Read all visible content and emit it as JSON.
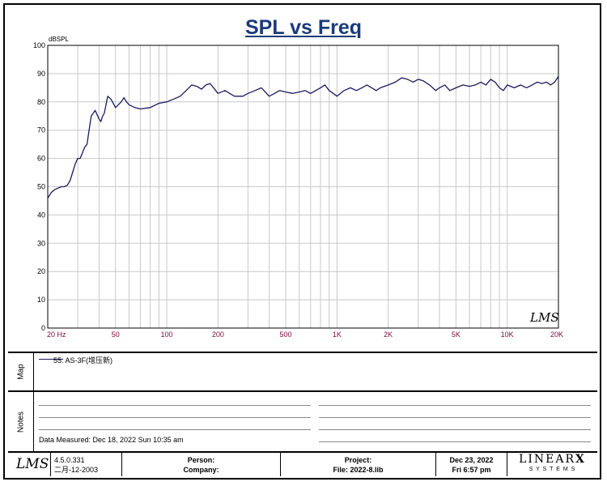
{
  "chart_data": {
    "type": "line",
    "title": "SPL vs Freq",
    "ylabel": "dBSPL",
    "xlabel": "",
    "x_scale": "log",
    "xlim": [
      20,
      20000
    ],
    "ylim": [
      0,
      100
    ],
    "y_ticks": [
      0,
      10,
      20,
      30,
      40,
      50,
      60,
      70,
      80,
      90,
      100
    ],
    "x_ticks": [
      {
        "value": 20,
        "label": "20 Hz"
      },
      {
        "value": 50,
        "label": "50"
      },
      {
        "value": 100,
        "label": "100"
      },
      {
        "value": 200,
        "label": "200"
      },
      {
        "value": 500,
        "label": "500"
      },
      {
        "value": 1000,
        "label": "1K"
      },
      {
        "value": 2000,
        "label": "2K"
      },
      {
        "value": 5000,
        "label": "5K"
      },
      {
        "value": 10000,
        "label": "10K"
      },
      {
        "value": 20000,
        "label": "20K"
      }
    ],
    "grid": true,
    "series": [
      {
        "name": "55: AS-3F(增压新)",
        "color": "#1a1a5e",
        "x": [
          20,
          21,
          22,
          23,
          24,
          25,
          26,
          27,
          28,
          29,
          30,
          31,
          32,
          33,
          34,
          35,
          36,
          37,
          38,
          40,
          41,
          42,
          43,
          45,
          47,
          48,
          50,
          52,
          54,
          56,
          58,
          60,
          65,
          70,
          80,
          90,
          100,
          110,
          120,
          130,
          140,
          150,
          160,
          170,
          180,
          200,
          220,
          250,
          280,
          300,
          330,
          360,
          400,
          430,
          460,
          500,
          550,
          600,
          650,
          700,
          800,
          850,
          900,
          950,
          1000,
          1100,
          1200,
          1300,
          1400,
          1500,
          1600,
          1700,
          1800,
          2000,
          2200,
          2400,
          2600,
          2800,
          3000,
          3200,
          3500,
          3800,
          4000,
          4300,
          4600,
          5000,
          5500,
          6000,
          6500,
          7000,
          7500,
          8000,
          8500,
          9000,
          9500,
          10000,
          11000,
          12000,
          13000,
          14000,
          15000,
          16000,
          17000,
          18000,
          19000,
          20000
        ],
        "y": [
          46,
          48,
          49,
          49.5,
          50,
          50,
          50.5,
          52,
          55,
          58,
          60,
          60,
          62,
          64,
          65,
          70,
          75,
          76,
          77,
          74,
          73,
          75,
          76,
          82,
          81,
          80,
          78,
          79,
          80,
          81.5,
          80,
          79,
          78,
          77.5,
          78,
          79.5,
          80,
          81,
          82,
          84,
          86,
          85.5,
          84.5,
          86,
          86.5,
          83,
          84,
          82,
          82,
          83,
          84,
          85,
          82,
          83,
          84,
          83.5,
          83,
          83.5,
          84,
          83,
          85,
          86,
          84,
          83,
          82,
          84,
          85,
          84,
          85,
          86,
          85,
          84,
          85,
          86,
          87,
          88.5,
          88,
          87,
          88,
          87.5,
          86,
          84,
          85,
          86,
          84,
          85,
          86,
          85.5,
          86,
          87,
          86,
          88,
          87,
          85,
          84,
          86,
          85,
          86,
          85,
          86,
          87,
          86.5,
          87,
          86,
          87,
          89
        ]
      }
    ]
  },
  "map": {
    "label": "Map",
    "legend_entry": "55: AS-3F(增压新)"
  },
  "notes": {
    "label": "Notes",
    "data_measured": "Data Measured: Dec 18, 2022  Sun 10:35 am"
  },
  "footer": {
    "logo_text": "LMS",
    "version": "4.5.0.331",
    "version_date": "二月-12-2003",
    "person": "Person:",
    "company": "Company:",
    "project": "Project:",
    "file": "File: 2022-8.lib",
    "date": "Dec 23, 2022",
    "time": "Fri  6:57 pm",
    "brand_main": "LINEAR",
    "brand_x": "X",
    "brand_sub": "S Y S T E M S"
  },
  "watermark": "LMS"
}
